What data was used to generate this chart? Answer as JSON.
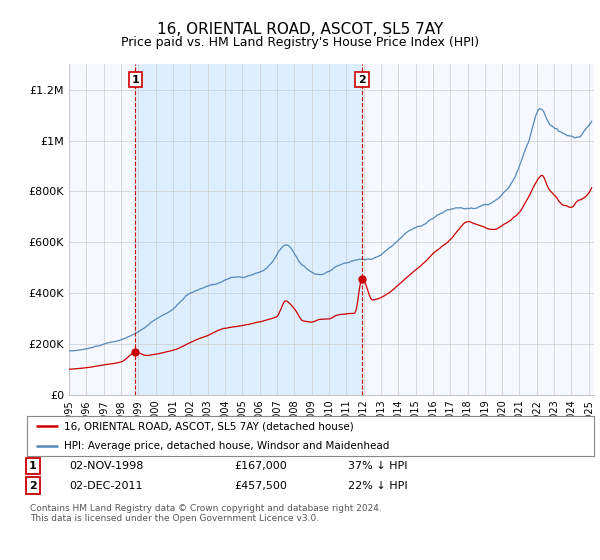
{
  "title": "16, ORIENTAL ROAD, ASCOT, SL5 7AY",
  "subtitle": "Price paid vs. HM Land Registry's House Price Index (HPI)",
  "title_fontsize": 11,
  "subtitle_fontsize": 9,
  "legend_label_red": "16, ORIENTAL ROAD, ASCOT, SL5 7AY (detached house)",
  "legend_label_blue": "HPI: Average price, detached house, Windsor and Maidenhead",
  "footnote": "Contains HM Land Registry data © Crown copyright and database right 2024.\nThis data is licensed under the Open Government Licence v3.0.",
  "point1_label": "1",
  "point1_date": "02-NOV-1998",
  "point1_price": "£167,000",
  "point1_hpi": "37% ↓ HPI",
  "point1_x": 1998.83,
  "point1_y": 167000,
  "point2_label": "2",
  "point2_date": "02-DEC-2011",
  "point2_price": "£457,500",
  "point2_hpi": "22% ↓ HPI",
  "point2_x": 2011.917,
  "point2_y": 457500,
  "red_color": "#cc0000",
  "blue_color": "#5588bb",
  "shade_color": "#ddeeff",
  "bg_color": "#ffffff",
  "chart_bg": "#f5f8ff",
  "ylim": [
    0,
    1300000
  ],
  "xlim_start": 1995.0,
  "xlim_end": 2025.3
}
